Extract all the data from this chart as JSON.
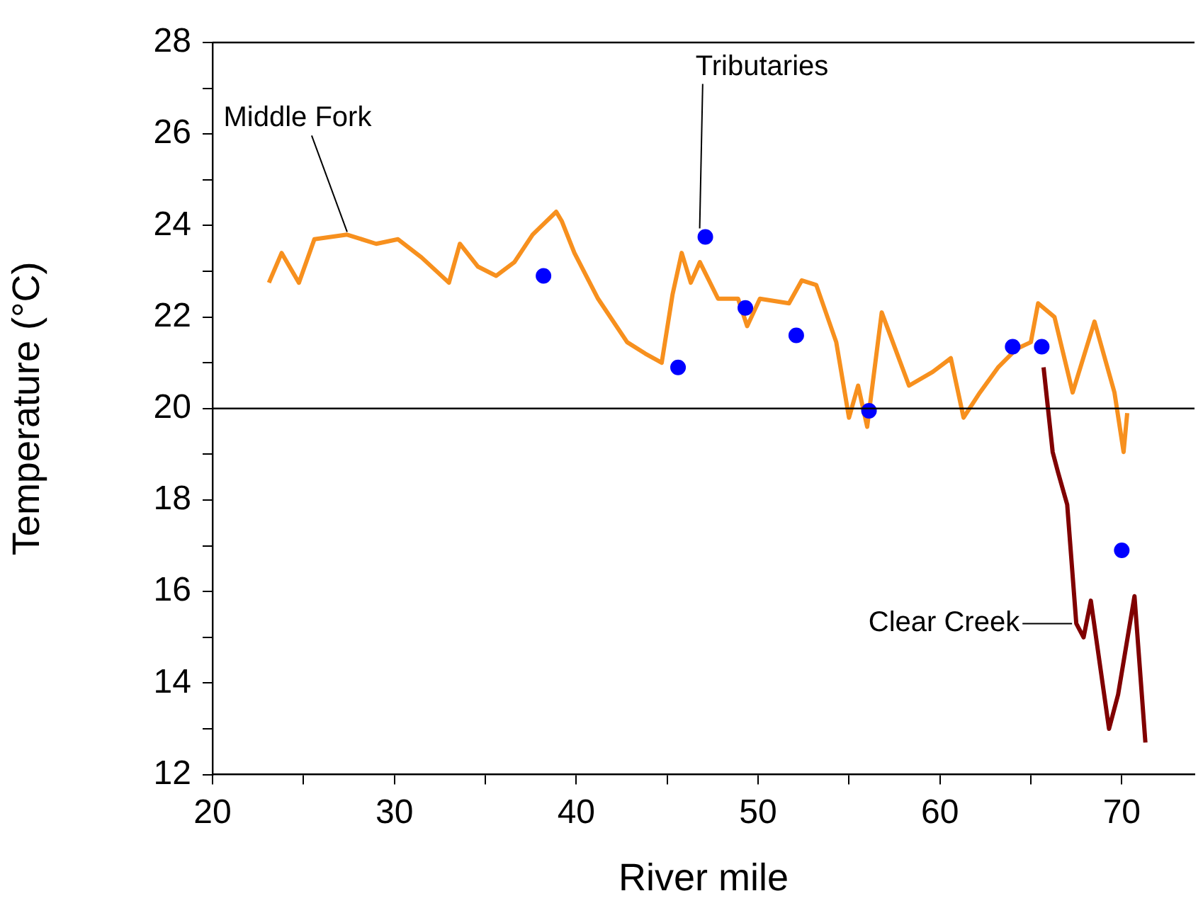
{
  "chart_data": {
    "type": "line",
    "xlabel": "River mile",
    "ylabel": "Temperature (°C)",
    "xlim": [
      20,
      74
    ],
    "xticks": [
      20,
      {
        "value": 25,
        "label": null
      },
      30,
      {
        "value": 35,
        "label": null
      },
      40,
      {
        "value": 45,
        "label": null
      },
      50,
      {
        "value": 55,
        "label": null
      },
      60,
      {
        "value": 65,
        "label": null
      },
      70
    ],
    "ylim": [
      12,
      28
    ],
    "yticks": [
      12,
      {
        "value": 13,
        "label": null
      },
      14,
      {
        "value": 15,
        "label": null
      },
      16,
      {
        "value": 17,
        "label": null
      },
      18,
      {
        "value": 19,
        "label": null
      },
      20,
      {
        "value": 21,
        "label": null
      },
      22,
      {
        "value": 23,
        "label": null
      },
      24,
      {
        "value": 25,
        "label": null
      },
      26,
      {
        "value": 27,
        "label": null
      },
      28
    ],
    "grid": false,
    "legend": false,
    "ref_lines": [
      {
        "axis": "y",
        "value": 20,
        "color": "#000000"
      }
    ],
    "series": [
      {
        "name": "Middle Fork",
        "color": "#f7901e",
        "marker": "none",
        "x": [
          23.1,
          23.8,
          24.75,
          25.6,
          27.4,
          29,
          30.2,
          31.5,
          33,
          33.6,
          34.6,
          35.6,
          36.6,
          37.6,
          38.9,
          39.2,
          39.9,
          41.2,
          42.8,
          43.8,
          44.7,
          45.3,
          45.8,
          46.3,
          46.8,
          47.8,
          48.9,
          49.4,
          50.1,
          51.7,
          52.4,
          53.2,
          54.3,
          55.0,
          55.5,
          56.0,
          56.8,
          58.3,
          59.6,
          60.6,
          61.3,
          62.2,
          63.2,
          64.2,
          65.0,
          65.4,
          66.3,
          67.3,
          68.5,
          69.6,
          70.1,
          70.3
        ],
        "values": [
          22.75,
          23.4,
          22.75,
          23.7,
          23.8,
          23.6,
          23.7,
          23.3,
          22.75,
          23.6,
          23.1,
          22.9,
          23.2,
          23.8,
          24.3,
          24.1,
          23.4,
          22.4,
          21.45,
          21.2,
          21.0,
          22.5,
          23.4,
          22.75,
          23.2,
          22.4,
          22.4,
          21.8,
          22.4,
          22.3,
          22.8,
          22.7,
          21.45,
          19.8,
          20.5,
          19.6,
          22.1,
          20.5,
          20.8,
          21.1,
          19.8,
          20.35,
          20.9,
          21.3,
          21.45,
          22.3,
          22.0,
          20.35,
          21.9,
          20.35,
          19.05,
          19.9
        ]
      },
      {
        "name": "Clear Creek",
        "color": "#800000",
        "marker": "none",
        "x": [
          65.7,
          66.2,
          66.5,
          67.0,
          67.5,
          67.9,
          68.3,
          69.3,
          69.8,
          70.7,
          71.3
        ],
        "values": [
          20.9,
          19.05,
          18.6,
          17.9,
          15.3,
          15.0,
          15.8,
          13.0,
          13.75,
          15.9,
          12.7
        ]
      },
      {
        "name": "Tributaries",
        "type": "scatter",
        "color": "#0000ff",
        "marker": "circle",
        "x": [
          38.2,
          45.6,
          47.1,
          49.3,
          52.1,
          56.1,
          64.0,
          65.6,
          70.0
        ],
        "values": [
          22.9,
          20.9,
          23.75,
          22.2,
          21.6,
          19.95,
          21.35,
          21.35,
          16.9
        ]
      }
    ]
  }
}
